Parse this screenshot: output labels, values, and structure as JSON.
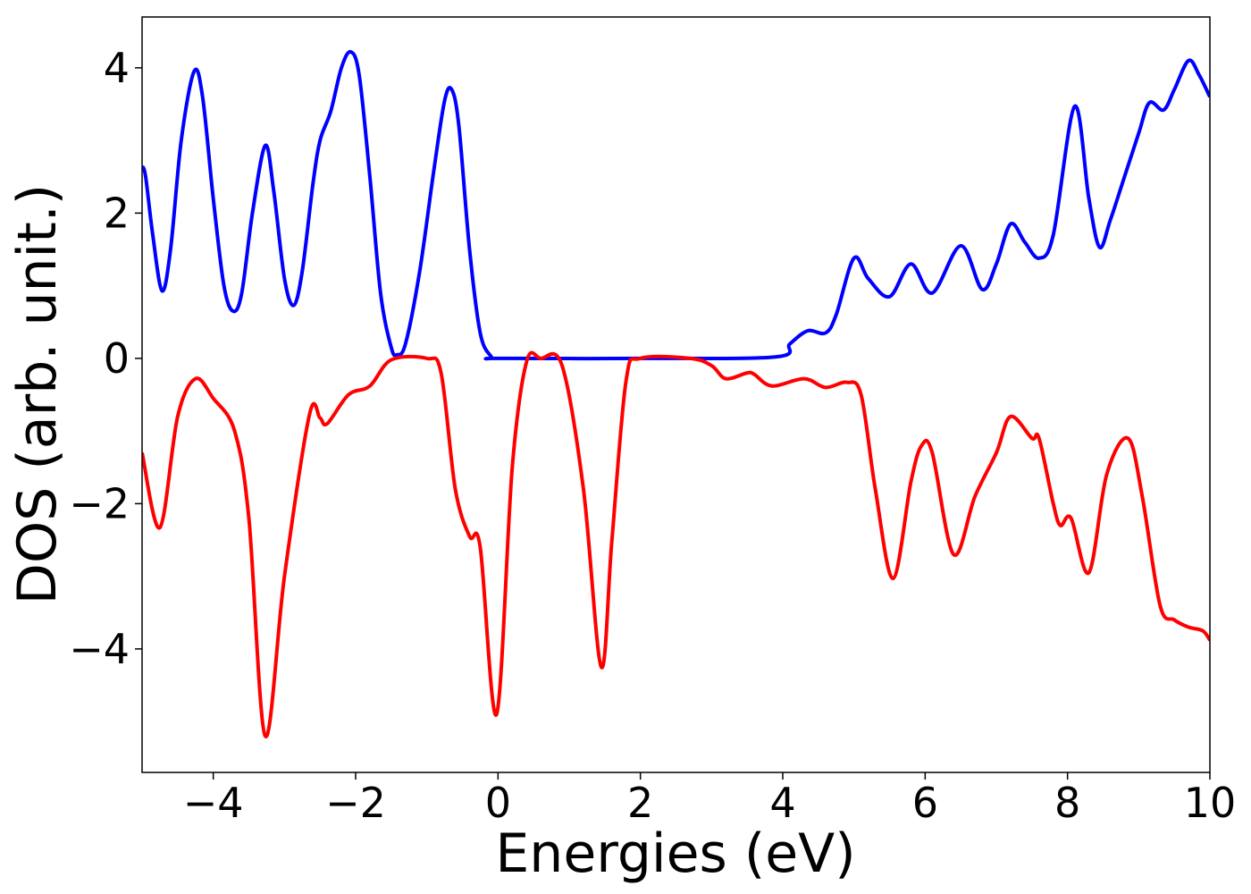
{
  "chart_data": {
    "type": "line",
    "xlabel": "Energies (eV)",
    "ylabel": "DOS (arb. unit.)",
    "xlim": [
      -5,
      10
    ],
    "ylim": [
      -5.7,
      4.7
    ],
    "xticks": [
      {
        "value": -4,
        "label": "−4"
      },
      {
        "value": -2,
        "label": "−2"
      },
      0,
      2,
      4,
      6,
      8,
      10
    ],
    "yticks": [
      {
        "value": -4,
        "label": "−4"
      },
      {
        "value": -2,
        "label": "−2"
      },
      0,
      2,
      4
    ],
    "series": [
      {
        "color": "#0000ff",
        "x": [
          -5,
          -4.95,
          -4.85,
          -4.72,
          -4.6,
          -4.45,
          -4.27,
          -4.15,
          -4.0,
          -3.85,
          -3.72,
          -3.6,
          -3.45,
          -3.27,
          -3.15,
          -3.0,
          -2.87,
          -2.75,
          -2.6,
          -2.5,
          -2.35,
          -2.2,
          -2.07,
          -1.95,
          -1.8,
          -1.65,
          -1.5,
          -1.42,
          -1.3,
          -1.1,
          -0.9,
          -0.75,
          -0.65,
          -0.55,
          -0.4,
          -0.25,
          -0.1,
          0,
          2,
          3.9,
          4.1,
          4.35,
          4.6,
          4.75,
          5.0,
          5.2,
          5.5,
          5.8,
          6.1,
          6.5,
          6.8,
          7.0,
          7.2,
          7.4,
          7.6,
          7.8,
          8.1,
          8.3,
          8.45,
          8.6,
          8.8,
          9.0,
          9.15,
          9.35,
          9.5,
          9.7,
          9.85,
          10
        ],
        "values": [
          2.65,
          2.5,
          1.7,
          0.93,
          1.5,
          3.0,
          3.95,
          3.6,
          2.2,
          1.0,
          0.65,
          0.9,
          2.0,
          2.93,
          2.3,
          1.1,
          0.73,
          1.2,
          2.4,
          3.0,
          3.4,
          4.0,
          4.22,
          3.9,
          2.5,
          0.9,
          0.15,
          0.05,
          0.2,
          1.2,
          2.6,
          3.55,
          3.7,
          3.2,
          1.5,
          0.35,
          0.03,
          0,
          0,
          0.02,
          0.2,
          0.38,
          0.35,
          0.6,
          1.38,
          1.1,
          0.85,
          1.3,
          0.9,
          1.55,
          0.95,
          1.3,
          1.85,
          1.6,
          1.38,
          1.7,
          3.47,
          2.2,
          1.53,
          1.9,
          2.5,
          3.1,
          3.52,
          3.42,
          3.7,
          4.1,
          3.9,
          3.6
        ]
      },
      {
        "color": "#ff0000",
        "x": [
          -5,
          -4.75,
          -4.5,
          -4.25,
          -4.0,
          -3.7,
          -3.5,
          -3.27,
          -3.0,
          -2.65,
          -2.5,
          -2.4,
          -2.1,
          -1.8,
          -1.5,
          -1.0,
          -0.8,
          -0.6,
          -0.4,
          -0.25,
          -0.02,
          0.2,
          0.4,
          0.6,
          0.9,
          1.2,
          1.45,
          1.6,
          1.8,
          2.0,
          2.7,
          3.0,
          3.2,
          3.5,
          3.6,
          3.85,
          4.3,
          4.6,
          4.9,
          5.1,
          5.3,
          5.55,
          5.8,
          5.95,
          6.1,
          6.4,
          6.7,
          7.0,
          7.2,
          7.5,
          7.6,
          7.8,
          7.9,
          8.05,
          8.3,
          8.55,
          8.85,
          9.05,
          9.3,
          9.5,
          9.7,
          9.9,
          10
        ],
        "values": [
          -1.3,
          -2.33,
          -0.8,
          -0.28,
          -0.55,
          -1.0,
          -2.2,
          -5.2,
          -3.0,
          -0.78,
          -0.82,
          -0.9,
          -0.5,
          -0.38,
          -0.02,
          0,
          -0.2,
          -1.8,
          -2.45,
          -2.6,
          -4.9,
          -1.5,
          -0.05,
          0,
          -0.1,
          -1.8,
          -4.25,
          -2.5,
          -0.3,
          0,
          0,
          -0.1,
          -0.28,
          -0.2,
          -0.22,
          -0.38,
          -0.28,
          -0.4,
          -0.33,
          -0.5,
          -1.8,
          -3.03,
          -1.7,
          -1.2,
          -1.3,
          -2.7,
          -1.9,
          -1.3,
          -0.8,
          -1.1,
          -1.1,
          -2.0,
          -2.3,
          -2.2,
          -2.95,
          -1.6,
          -1.1,
          -1.9,
          -3.4,
          -3.6,
          -3.7,
          -3.75,
          -3.88
        ]
      }
    ]
  }
}
